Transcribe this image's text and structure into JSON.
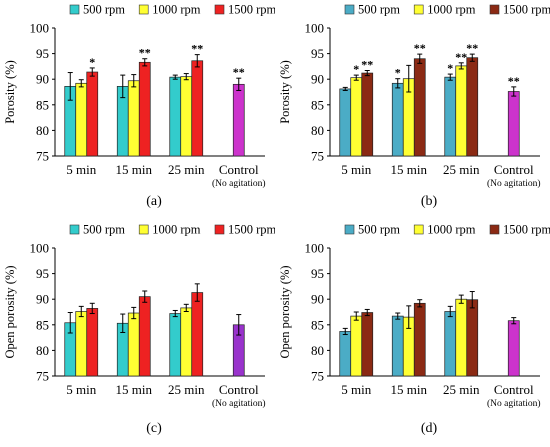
{
  "chart_data": [
    {
      "type": "bar",
      "panel_label": "(a)",
      "ylabel": "Porosity (%)",
      "ylim": [
        75,
        100
      ],
      "yticks": [
        75,
        80,
        85,
        90,
        95,
        100
      ],
      "categories": [
        "5 min",
        "15 min",
        "25 min"
      ],
      "control": {
        "label": "Control",
        "sublabel": "(No agitation)",
        "value": 89.0,
        "error": 1.2,
        "marker": "**",
        "color": "#cc33cc"
      },
      "series": [
        {
          "name": "500 rpm",
          "color": "#33cccc",
          "values": [
            88.6,
            88.6,
            90.4
          ],
          "errors": [
            2.7,
            2.2,
            0.4
          ],
          "markers": [
            "",
            "",
            ""
          ]
        },
        {
          "name": "1000 rpm",
          "color": "#ffff33",
          "values": [
            89.2,
            89.7,
            90.5
          ],
          "errors": [
            0.7,
            1.2,
            0.6
          ],
          "markers": [
            "",
            "",
            ""
          ]
        },
        {
          "name": "1500 rpm",
          "color": "#ee2222",
          "values": [
            91.4,
            93.3,
            93.6
          ],
          "errors": [
            0.8,
            0.7,
            1.2
          ],
          "markers": [
            "*",
            "**",
            "**"
          ]
        }
      ]
    },
    {
      "type": "bar",
      "panel_label": "(b)",
      "ylabel": "Porosity (%)",
      "ylim": [
        75,
        100
      ],
      "yticks": [
        75,
        80,
        85,
        90,
        95,
        100
      ],
      "categories": [
        "5 min",
        "15 min",
        "25 min"
      ],
      "control": {
        "label": "Control",
        "sublabel": "(No agitation)",
        "value": 87.6,
        "error": 0.9,
        "marker": "**",
        "color": "#cc33cc"
      },
      "series": [
        {
          "name": "500 rpm",
          "color": "#4bacc6",
          "values": [
            88.1,
            89.2,
            90.4
          ],
          "errors": [
            0.3,
            0.9,
            0.6
          ],
          "markers": [
            "",
            "*",
            "*"
          ]
        },
        {
          "name": "1000 rpm",
          "color": "#ffff33",
          "values": [
            90.3,
            90.1,
            92.6
          ],
          "errors": [
            0.5,
            2.6,
            0.6
          ],
          "markers": [
            "*",
            "",
            "**"
          ]
        },
        {
          "name": "1500 rpm",
          "color": "#8b2a14",
          "values": [
            91.2,
            94.0,
            94.2
          ],
          "errors": [
            0.5,
            0.9,
            0.7
          ],
          "markers": [
            "**",
            "**",
            "**"
          ]
        }
      ]
    },
    {
      "type": "bar",
      "panel_label": "(c)",
      "ylabel": "Open porosity (%)",
      "ylim": [
        75,
        100
      ],
      "yticks": [
        75,
        80,
        85,
        90,
        95,
        100
      ],
      "categories": [
        "5 min",
        "15 min",
        "25 min"
      ],
      "control": {
        "label": "Control",
        "sublabel": "(No agitation)",
        "value": 85.0,
        "error": 2.0,
        "marker": "",
        "color": "#9933cc"
      },
      "series": [
        {
          "name": "500 rpm",
          "color": "#33cccc",
          "values": [
            85.4,
            85.3,
            87.2
          ],
          "errors": [
            2.0,
            1.8,
            0.6
          ],
          "markers": [
            "",
            "",
            ""
          ]
        },
        {
          "name": "1000 rpm",
          "color": "#ffff33",
          "values": [
            87.6,
            87.3,
            88.3
          ],
          "errors": [
            1.0,
            1.1,
            0.7
          ],
          "markers": [
            "",
            "",
            ""
          ]
        },
        {
          "name": "1500 rpm",
          "color": "#ee2222",
          "values": [
            88.2,
            90.5,
            91.3
          ],
          "errors": [
            1.0,
            1.1,
            1.7
          ],
          "markers": [
            "",
            "",
            ""
          ]
        }
      ]
    },
    {
      "type": "bar",
      "panel_label": "(d)",
      "ylabel": "Open porosity (%)",
      "ylim": [
        75,
        100
      ],
      "yticks": [
        75,
        80,
        85,
        90,
        95,
        100
      ],
      "categories": [
        "5 min",
        "15 min",
        "25 min"
      ],
      "control": {
        "label": "Control",
        "sublabel": "(No agitation)",
        "value": 85.8,
        "error": 0.6,
        "marker": "",
        "color": "#cc33cc"
      },
      "series": [
        {
          "name": "500 rpm",
          "color": "#4bacc6",
          "values": [
            83.7,
            86.7,
            87.6
          ],
          "errors": [
            0.6,
            0.6,
            1.0
          ],
          "markers": [
            "",
            "",
            ""
          ]
        },
        {
          "name": "1000 rpm",
          "color": "#ffff33",
          "values": [
            86.7,
            86.5,
            90.0
          ],
          "errors": [
            0.8,
            2.2,
            0.8
          ],
          "markers": [
            "",
            "",
            ""
          ]
        },
        {
          "name": "1500 rpm",
          "color": "#8b2a14",
          "values": [
            87.4,
            89.2,
            89.9
          ],
          "errors": [
            0.6,
            0.7,
            1.6
          ],
          "markers": [
            "",
            "",
            ""
          ]
        }
      ]
    }
  ]
}
